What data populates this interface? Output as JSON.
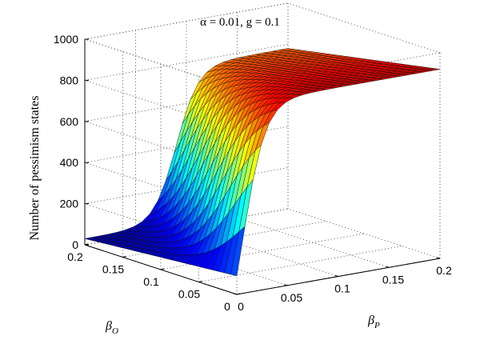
{
  "chart_data": {
    "type": "surface",
    "title": "α = 0.01, g = 0.1",
    "xlabel": "β_P",
    "ylabel": "β_O",
    "zlabel": "Number of pessimism states",
    "xlim": [
      0,
      0.2
    ],
    "ylim": [
      0,
      0.2
    ],
    "zlim": [
      0,
      1000
    ],
    "xticks": [
      "0",
      "0.05",
      "0.1",
      "0.15",
      "0.2"
    ],
    "yticks": [
      "0",
      "0.05",
      "0.1",
      "0.15",
      "0.2"
    ],
    "zticks": [
      "0",
      "200",
      "400",
      "600",
      "800",
      "1000"
    ],
    "grid": true,
    "colormap": "jet",
    "grid_samples": 25,
    "corner_values": [
      {
        "beta_P": 0,
        "beta_O": 0,
        "value": 90
      },
      {
        "beta_P": 0,
        "beta_O": 0.2,
        "value": 30
      },
      {
        "beta_P": 0.2,
        "beta_O": 0.2,
        "value": 780
      },
      {
        "beta_P": 0.2,
        "beta_O": 0,
        "value": 920
      }
    ]
  }
}
